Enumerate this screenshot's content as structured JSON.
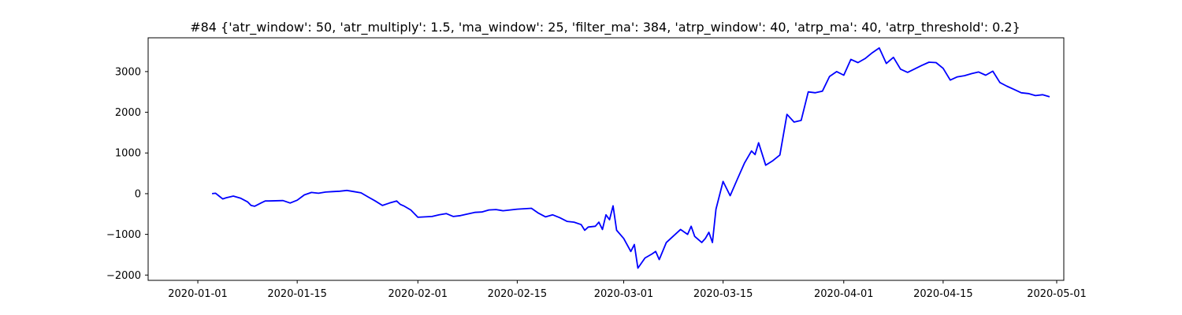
{
  "chart_data": {
    "type": "line",
    "title": "#84 {'atr_window': 50, 'atr_multiply': 1.5, 'ma_window': 25, 'filter_ma': 384, 'atrp_window': 40, 'atrp_ma': 40, 'atrp_threshold': 0.2}",
    "xlabel": "",
    "ylabel": "",
    "xlim": [
      "2019-12-25",
      "2020-05-02"
    ],
    "ylim": [
      -2130,
      3830
    ],
    "grid": false,
    "x_ticks": [
      "2020-01-01",
      "2020-01-15",
      "2020-02-01",
      "2020-02-15",
      "2020-03-01",
      "2020-03-15",
      "2020-04-01",
      "2020-04-15",
      "2020-05-01"
    ],
    "y_ticks": [
      -2000,
      -1000,
      0,
      1000,
      2000,
      3000
    ],
    "series": [
      {
        "color": "#0000ff",
        "x": [
          "2020-01-03",
          "2020-01-03 12:00",
          "2020-01-04",
          "2020-01-04 12:00",
          "2020-01-05",
          "2020-01-06",
          "2020-01-07",
          "2020-01-08",
          "2020-01-08 12:00",
          "2020-01-09",
          "2020-01-10",
          "2020-01-10 12:00",
          "2020-01-11",
          "2020-01-13",
          "2020-01-14",
          "2020-01-15",
          "2020-01-16",
          "2020-01-17",
          "2020-01-18",
          "2020-01-19",
          "2020-01-20",
          "2020-01-21",
          "2020-01-22",
          "2020-01-23",
          "2020-01-24",
          "2020-01-25",
          "2020-01-26",
          "2020-01-27",
          "2020-01-28",
          "2020-01-29",
          "2020-01-29 12:00",
          "2020-01-30",
          "2020-01-31",
          "2020-02-01",
          "2020-02-03",
          "2020-02-04",
          "2020-02-05",
          "2020-02-06",
          "2020-02-07",
          "2020-02-08",
          "2020-02-09",
          "2020-02-10",
          "2020-02-11",
          "2020-02-12",
          "2020-02-13",
          "2020-02-14",
          "2020-02-15",
          "2020-02-17",
          "2020-02-18",
          "2020-02-19",
          "2020-02-20",
          "2020-02-21",
          "2020-02-22",
          "2020-02-23",
          "2020-02-24",
          "2020-02-24 12:00",
          "2020-02-25",
          "2020-02-26",
          "2020-02-26 12:00",
          "2020-02-27",
          "2020-02-27 12:00",
          "2020-02-28",
          "2020-02-28 12:00",
          "2020-02-29",
          "2020-03-01",
          "2020-03-02",
          "2020-03-02 12:00",
          "2020-03-03",
          "2020-03-04",
          "2020-03-05",
          "2020-03-05 12:00",
          "2020-03-06",
          "2020-03-07",
          "2020-03-09",
          "2020-03-10",
          "2020-03-10 12:00",
          "2020-03-11",
          "2020-03-12",
          "2020-03-12 12:00",
          "2020-03-13",
          "2020-03-13 12:00",
          "2020-03-14",
          "2020-03-15",
          "2020-03-16",
          "2020-03-17",
          "2020-03-18",
          "2020-03-19",
          "2020-03-19 12:00",
          "2020-03-20",
          "2020-03-21",
          "2020-03-22",
          "2020-03-23",
          "2020-03-24",
          "2020-03-25",
          "2020-03-26",
          "2020-03-27",
          "2020-03-28",
          "2020-03-29",
          "2020-03-30",
          "2020-03-31",
          "2020-04-01",
          "2020-04-02",
          "2020-04-03",
          "2020-04-04",
          "2020-04-05",
          "2020-04-06",
          "2020-04-07",
          "2020-04-08",
          "2020-04-09",
          "2020-04-10",
          "2020-04-12",
          "2020-04-13",
          "2020-04-14",
          "2020-04-15",
          "2020-04-16",
          "2020-04-17",
          "2020-04-18",
          "2020-04-19",
          "2020-04-20",
          "2020-04-21",
          "2020-04-22",
          "2020-04-23",
          "2020-04-24",
          "2020-04-25",
          "2020-04-26",
          "2020-04-27",
          "2020-04-28",
          "2020-04-29",
          "2020-04-30"
        ],
        "values": [
          0,
          10,
          -60,
          -130,
          -100,
          -60,
          -110,
          -200,
          -290,
          -310,
          -220,
          -180,
          -180,
          -170,
          -230,
          -160,
          -30,
          30,
          10,
          40,
          50,
          60,
          80,
          50,
          20,
          -80,
          -180,
          -290,
          -230,
          -180,
          -260,
          -300,
          -400,
          -580,
          -560,
          -520,
          -490,
          -560,
          -540,
          -500,
          -460,
          -450,
          -400,
          -390,
          -420,
          -400,
          -380,
          -360,
          -480,
          -570,
          -520,
          -590,
          -680,
          -700,
          -760,
          -900,
          -820,
          -800,
          -700,
          -880,
          -520,
          -640,
          -300,
          -900,
          -1100,
          -1420,
          -1250,
          -1830,
          -1580,
          -1480,
          -1420,
          -1620,
          -1200,
          -880,
          -1000,
          -800,
          -1050,
          -1200,
          -1100,
          -950,
          -1200,
          -380,
          300,
          -50,
          350,
          750,
          1050,
          960,
          1250,
          700,
          810,
          950,
          1950,
          1760,
          1800,
          2500,
          2480,
          2520,
          2880,
          3000,
          2910,
          3300,
          3220,
          3320,
          3460,
          3580,
          3200,
          3350,
          3060,
          2980,
          3150,
          3230,
          3220,
          3080,
          2790,
          2870,
          2900,
          2950,
          2990,
          2910,
          3010,
          2730,
          2640,
          2560,
          2480,
          2460,
          2410,
          2430,
          2380
        ]
      }
    ]
  }
}
